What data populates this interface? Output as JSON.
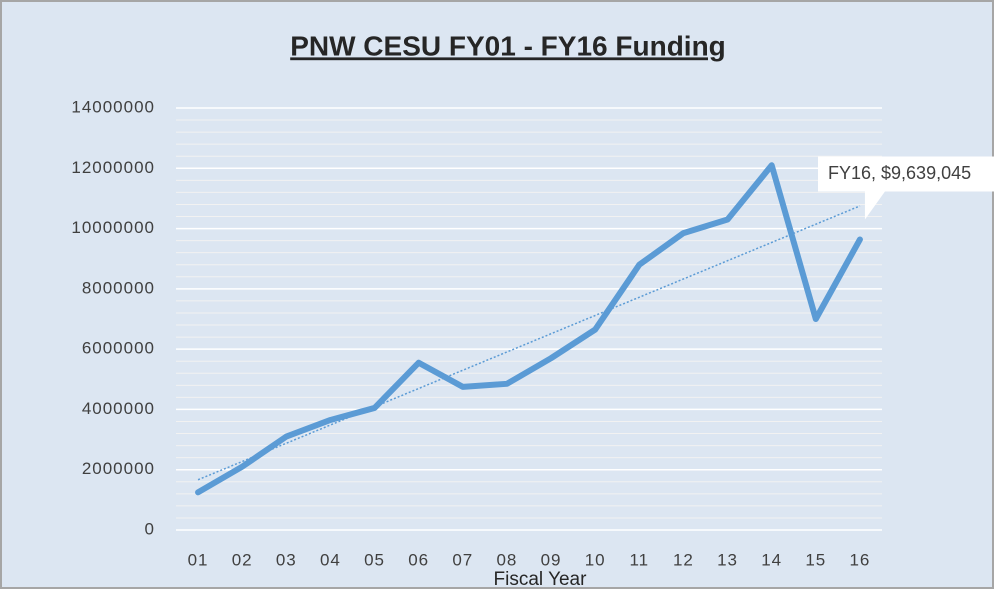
{
  "chart_data": {
    "type": "line",
    "title": "PNW CESU FY01 - FY16 Funding",
    "x_label": "Fiscal Year",
    "categories": [
      "01",
      "02",
      "03",
      "04",
      "05",
      "06",
      "07",
      "08",
      "09",
      "10",
      "11",
      "12",
      "13",
      "14",
      "15",
      "16"
    ],
    "series": [
      {
        "name": "Funding",
        "color": "#5b9bd5",
        "values": [
          1250000,
          2100000,
          3100000,
          3650000,
          4050000,
          5550000,
          4750000,
          4850000,
          5700000,
          6650000,
          8800000,
          9850000,
          10300000,
          12100000,
          7000000,
          9639045
        ],
        "value_labels": [
          null,
          null,
          null,
          null,
          null,
          null,
          null,
          null,
          null,
          null,
          null,
          null,
          null,
          null,
          null,
          "FY16, $9,639,045"
        ]
      }
    ],
    "ylim": [
      0,
      14000000
    ],
    "yticks": [
      0,
      2000000,
      4000000,
      6000000,
      8000000,
      10000000,
      12000000,
      14000000
    ],
    "grid": true,
    "trendline": "linear",
    "legend": false
  }
}
